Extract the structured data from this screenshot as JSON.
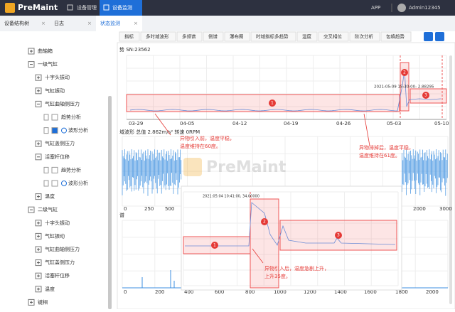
{
  "nav": {
    "logo": "PreMaint",
    "items": [
      "设备管理",
      "设备监测"
    ],
    "app": "APP",
    "user": "Admin12345"
  },
  "tabs": [
    "设备结构树",
    "日志",
    "状态监测"
  ],
  "tab_close": "×",
  "sub_tabs": [
    "指标",
    "多时域波形",
    "多频谱",
    "倒谱",
    "瀑布图",
    "时域指标多趋势",
    "温度",
    "交叉相位",
    "阶次分析",
    "包络趋势"
  ],
  "tree": [
    {
      "label": "曲轴箱"
    },
    {
      "label": "一级气缸",
      "children": [
        {
          "label": "十字头振动"
        },
        {
          "label": "气缸振动"
        },
        {
          "label": "气缸曲轴侧压力",
          "children": [
            {
              "label": "趋势分析",
              "checked": false
            },
            {
              "label": "波形分析",
              "checked": true
            }
          ]
        },
        {
          "label": "气缸盖侧压力"
        },
        {
          "label": "活塞杆位移",
          "children": [
            {
              "label": "趋势分析",
              "checked": false
            },
            {
              "label": "波形分析",
              "checked": false
            }
          ]
        },
        {
          "label": "温度"
        }
      ]
    },
    {
      "label": "二级气缸",
      "children": [
        {
          "label": "十字头振动"
        },
        {
          "label": "气缸振动"
        },
        {
          "label": "气缸曲轴侧压力"
        },
        {
          "label": "气缸盖侧压力"
        },
        {
          "label": "活塞杆位移"
        },
        {
          "label": "温度"
        }
      ]
    },
    {
      "label": "键相"
    }
  ],
  "trend": {
    "title": "势 SN:23562",
    "x_labels": [
      "03-29",
      "04-05",
      "04-12",
      "04-19",
      "04-26",
      "05-03",
      "05-10"
    ],
    "tooltip": "2021:05:09 15:30:00: 2.88295",
    "markers": [
      "1",
      "2",
      "3"
    ]
  },
  "waveform": {
    "title": "域波形 总值 2.862m/s² 转速 0RPM",
    "x_labels": [
      "0",
      "250",
      "500",
      "2000",
      "3000"
    ]
  },
  "spectrum": {
    "title": "谱",
    "x_labels": [
      "0",
      "200",
      "400",
      "600",
      "800",
      "1000",
      "1200",
      "1400",
      "1600",
      "1800",
      "2000"
    ]
  },
  "inset": {
    "tooltip": "2021:05:04 10:41:00, 34.00000",
    "markers": [
      "1",
      "2",
      "3"
    ]
  },
  "callouts": [
    [
      "异物引入前，温度平稳，",
      "温度维持在60度。"
    ],
    [
      "异物排掉后，温度平稳，",
      "温度维持在61度。"
    ],
    [
      "异物引入后，温度急剧上升，",
      "上升35度。"
    ]
  ],
  "watermark": "PreMaint"
}
